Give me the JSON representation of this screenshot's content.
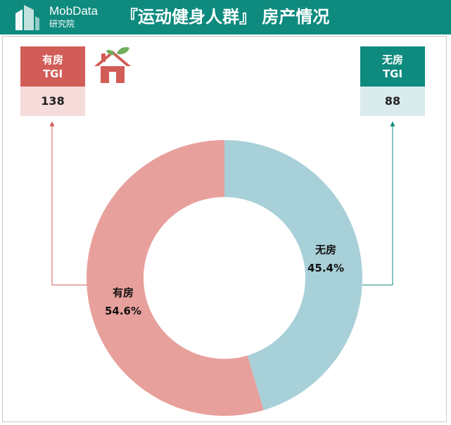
{
  "header": {
    "brand": "MobData",
    "brand_sub": "研究院",
    "title": "『运动健身人群』 房产情况"
  },
  "tgi": {
    "own": {
      "label_line1": "有房",
      "label_line2": "TGI",
      "value": "138"
    },
    "none": {
      "label_line1": "无房",
      "label_line2": "TGI",
      "value": "88"
    }
  },
  "colors": {
    "header_bg": "#0e8a7e",
    "own": "#e8a09c",
    "none": "#a8d0d8",
    "own_accent": "#d25c57",
    "none_accent": "#0e8a7e"
  },
  "chart_data": {
    "type": "pie",
    "donut": true,
    "categories": [
      "有房",
      "无房"
    ],
    "values": [
      54.6,
      45.4
    ],
    "labels": [
      "54.6%",
      "45.4%"
    ]
  }
}
